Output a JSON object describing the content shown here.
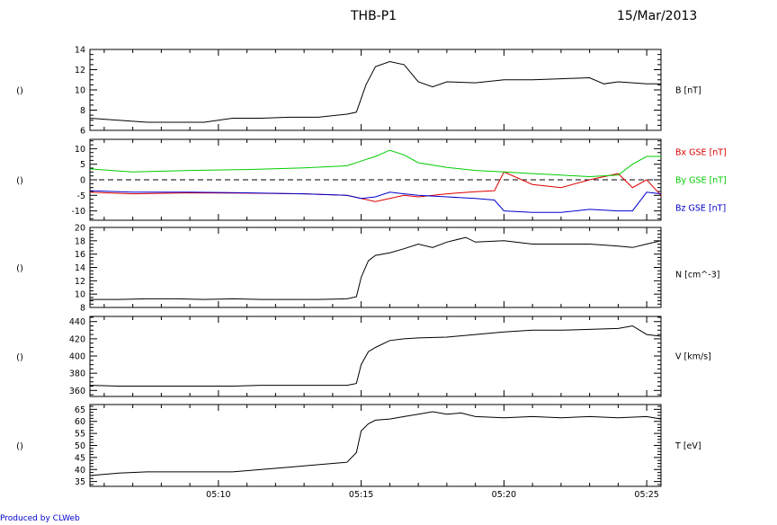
{
  "title": "THB-P1",
  "date": "15/Mar/2013",
  "footer": "Produced by CLWeb",
  "colors": {
    "black": "#000000",
    "red": "#dd0000",
    "green": "#00cc00",
    "blue": "#0000cc"
  },
  "chart_data": {
    "type": "line",
    "x_ticks": [
      "05:10",
      "05:15",
      "05:20",
      "05:25"
    ],
    "x_range": [
      "05:05:30",
      "05:25:30"
    ],
    "panels": [
      {
        "id": "B",
        "left_label": "()",
        "ylim": [
          6,
          14
        ],
        "yticks": [
          6,
          8,
          10,
          12,
          14
        ],
        "series": [
          {
            "name": "B [nT]",
            "color": "black",
            "label_y": 10,
            "x": [
              "05:05:30",
              "05:06:30",
              "05:07:30",
              "05:08:30",
              "05:09:30",
              "05:10:30",
              "05:11:30",
              "05:12:30",
              "05:13:30",
              "05:14:30",
              "05:14:50",
              "05:15:10",
              "05:15:30",
              "05:16",
              "05:16:30",
              "05:17",
              "05:17:30",
              "05:18",
              "05:19",
              "05:20",
              "05:21",
              "05:22",
              "05:23",
              "05:23:30",
              "05:24",
              "05:24:30",
              "05:25",
              "05:25:30"
            ],
            "y": [
              7.2,
              7.0,
              6.8,
              6.8,
              6.8,
              7.2,
              7.2,
              7.3,
              7.3,
              7.6,
              7.8,
              10.5,
              12.3,
              12.8,
              12.5,
              10.8,
              10.3,
              10.8,
              10.7,
              11.0,
              11.0,
              11.1,
              11.2,
              10.6,
              10.8,
              10.7,
              10.6,
              10.6
            ]
          }
        ]
      },
      {
        "id": "Bgse",
        "left_label": "()",
        "ylim": [
          -13,
          13
        ],
        "yticks": [
          -10,
          -5,
          0,
          5,
          10
        ],
        "zero_line": true,
        "series": [
          {
            "name": "Bx GSE [nT]",
            "color": "red",
            "label_y": 9,
            "x": [
              "05:05:30",
              "05:07",
              "05:09",
              "05:11",
              "05:13",
              "05:14:30",
              "05:15",
              "05:15:30",
              "05:16",
              "05:16:30",
              "05:17",
              "05:18",
              "05:19",
              "05:19:40",
              "05:20",
              "05:21",
              "05:22",
              "05:23",
              "05:24",
              "05:24:30",
              "05:25",
              "05:25:30"
            ],
            "y": [
              -4,
              -4.5,
              -4.2,
              -4.3,
              -4.5,
              -5,
              -6,
              -7,
              -6,
              -5,
              -5.5,
              -4.5,
              -3.8,
              -3.5,
              2.5,
              -1.5,
              -2.5,
              0,
              2,
              -2.5,
              0,
              -5
            ]
          },
          {
            "name": "By GSE [nT]",
            "color": "green",
            "label_y": 0,
            "x": [
              "05:05:30",
              "05:07",
              "05:09",
              "05:11",
              "05:13",
              "05:14:30",
              "05:15",
              "05:15:30",
              "05:16",
              "05:16:30",
              "05:17",
              "05:18",
              "05:19",
              "05:20",
              "05:21",
              "05:22",
              "05:23",
              "05:24",
              "05:24:30",
              "05:25",
              "05:25:30"
            ],
            "y": [
              3.5,
              2.5,
              3,
              3.3,
              3.8,
              4.5,
              6,
              7.5,
              9.5,
              8,
              5.5,
              4,
              3,
              2.5,
              2,
              1.5,
              1,
              1.5,
              5,
              7.5,
              7.5
            ]
          },
          {
            "name": "Bz GSE [nT]",
            "color": "blue",
            "label_y": -9,
            "x": [
              "05:05:30",
              "05:07",
              "05:09",
              "05:11",
              "05:13",
              "05:14:30",
              "05:15",
              "05:15:30",
              "05:16",
              "05:16:30",
              "05:17",
              "05:18",
              "05:19",
              "05:19:40",
              "05:20",
              "05:21",
              "05:22",
              "05:23",
              "05:24",
              "05:24:30",
              "05:25",
              "05:25:30"
            ],
            "y": [
              -3.5,
              -4,
              -4,
              -4.2,
              -4.5,
              -5,
              -6,
              -5.5,
              -4,
              -4.5,
              -5,
              -5.5,
              -6,
              -6.5,
              -10,
              -10.5,
              -10.5,
              -9.5,
              -10,
              -10,
              -4,
              -4.5
            ]
          }
        ]
      },
      {
        "id": "N",
        "left_label": "()",
        "ylim": [
          8,
          20
        ],
        "yticks": [
          8,
          10,
          12,
          14,
          16,
          18,
          20
        ],
        "series": [
          {
            "name": "N [cm^-3]",
            "color": "black",
            "label_y": 13,
            "x": [
              "05:05:30",
              "05:06:30",
              "05:07:30",
              "05:08:30",
              "05:09:30",
              "05:10:30",
              "05:11:30",
              "05:12:30",
              "05:13:30",
              "05:14:30",
              "05:14:50",
              "05:15",
              "05:15:15",
              "05:15:30",
              "05:16",
              "05:16:30",
              "05:17",
              "05:17:30",
              "05:18",
              "05:18:40",
              "05:19",
              "05:20",
              "05:21",
              "05:22",
              "05:23",
              "05:24",
              "05:24:30",
              "05:25",
              "05:25:30"
            ],
            "y": [
              9.2,
              9.2,
              9.3,
              9.3,
              9.2,
              9.3,
              9.2,
              9.2,
              9.2,
              9.3,
              9.6,
              12.5,
              15.0,
              15.8,
              16.2,
              16.8,
              17.5,
              17.0,
              17.8,
              18.5,
              17.8,
              18.0,
              17.5,
              17.5,
              17.5,
              17.2,
              17.0,
              17.5,
              18.0
            ]
          }
        ]
      },
      {
        "id": "V",
        "left_label": "()",
        "ylim": [
          353,
          446
        ],
        "yticks": [
          360,
          380,
          400,
          420,
          440
        ],
        "series": [
          {
            "name": "V [km/s]",
            "color": "black",
            "label_y": 400,
            "x": [
              "05:05:30",
              "05:06:30",
              "05:07:30",
              "05:08:30",
              "05:09:30",
              "05:10:30",
              "05:11:30",
              "05:12:30",
              "05:13:30",
              "05:14:30",
              "05:14:50",
              "05:15",
              "05:15:15",
              "05:15:30",
              "05:16",
              "05:16:30",
              "05:17",
              "05:18",
              "05:19",
              "05:20",
              "05:21",
              "05:22",
              "05:23",
              "05:24",
              "05:24:30",
              "05:25",
              "05:25:30"
            ],
            "y": [
              366,
              365,
              365,
              365,
              365,
              365,
              366,
              366,
              366,
              366,
              368,
              390,
              405,
              410,
              418,
              420,
              421,
              422,
              425,
              428,
              430,
              430,
              431,
              432,
              435,
              425,
              423
            ]
          }
        ]
      },
      {
        "id": "T",
        "left_label": "()",
        "ylim": [
          33,
          67
        ],
        "yticks": [
          35,
          40,
          45,
          50,
          55,
          60,
          65
        ],
        "series": [
          {
            "name": "T [eV]",
            "color": "black",
            "label_y": 50,
            "x": [
              "05:05:30",
              "05:06:30",
              "05:07:30",
              "05:08:30",
              "05:09:30",
              "05:10:30",
              "05:11:30",
              "05:12:30",
              "05:13:30",
              "05:14:30",
              "05:14:50",
              "05:15",
              "05:15:15",
              "05:15:30",
              "05:16",
              "05:16:30",
              "05:17",
              "05:17:30",
              "05:18",
              "05:18:30",
              "05:19",
              "05:20",
              "05:21",
              "05:22",
              "05:23",
              "05:24",
              "05:25",
              "05:25:30"
            ],
            "y": [
              37.5,
              38.5,
              39,
              39,
              39,
              39,
              40,
              41,
              42,
              43,
              47,
              56,
              59,
              60.5,
              61,
              62,
              63,
              64,
              63,
              63.5,
              62,
              61.5,
              62,
              61.5,
              62,
              61.5,
              62,
              61
            ]
          }
        ]
      }
    ]
  }
}
